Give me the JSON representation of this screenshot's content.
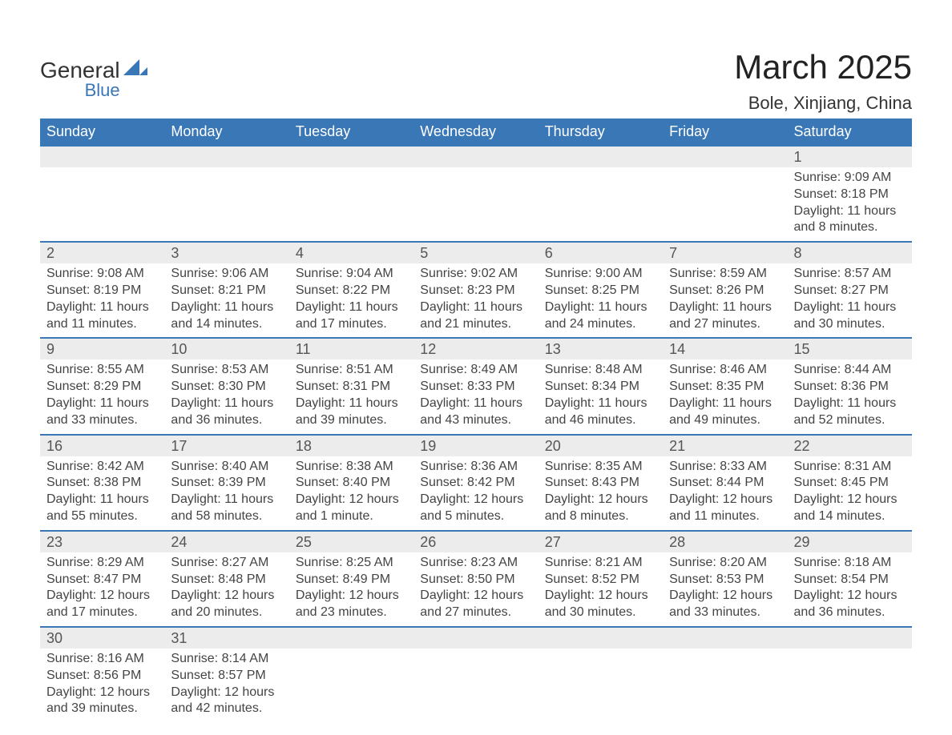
{
  "logo": {
    "word1": "General",
    "word2": "Blue",
    "shape_color": "#3a77b7",
    "text_color": "#333333"
  },
  "title": "March 2025",
  "location": "Bole, Xinjiang, China",
  "colors": {
    "header_bg": "#3a77b7",
    "header_text": "#ffffff",
    "row_separator": "#3a77b7",
    "daynum_bg": "#ececec",
    "body_text": "#444444",
    "page_bg": "#ffffff"
  },
  "typography": {
    "title_fontsize": 42,
    "location_fontsize": 22,
    "header_fontsize": 18,
    "daynum_fontsize": 18,
    "body_fontsize": 16
  },
  "day_headers": [
    "Sunday",
    "Monday",
    "Tuesday",
    "Wednesday",
    "Thursday",
    "Friday",
    "Saturday"
  ],
  "weeks": [
    [
      null,
      null,
      null,
      null,
      null,
      null,
      {
        "n": "1",
        "sr": "Sunrise: 9:09 AM",
        "ss": "Sunset: 8:18 PM",
        "d1": "Daylight: 11 hours",
        "d2": "and 8 minutes."
      }
    ],
    [
      {
        "n": "2",
        "sr": "Sunrise: 9:08 AM",
        "ss": "Sunset: 8:19 PM",
        "d1": "Daylight: 11 hours",
        "d2": "and 11 minutes."
      },
      {
        "n": "3",
        "sr": "Sunrise: 9:06 AM",
        "ss": "Sunset: 8:21 PM",
        "d1": "Daylight: 11 hours",
        "d2": "and 14 minutes."
      },
      {
        "n": "4",
        "sr": "Sunrise: 9:04 AM",
        "ss": "Sunset: 8:22 PM",
        "d1": "Daylight: 11 hours",
        "d2": "and 17 minutes."
      },
      {
        "n": "5",
        "sr": "Sunrise: 9:02 AM",
        "ss": "Sunset: 8:23 PM",
        "d1": "Daylight: 11 hours",
        "d2": "and 21 minutes."
      },
      {
        "n": "6",
        "sr": "Sunrise: 9:00 AM",
        "ss": "Sunset: 8:25 PM",
        "d1": "Daylight: 11 hours",
        "d2": "and 24 minutes."
      },
      {
        "n": "7",
        "sr": "Sunrise: 8:59 AM",
        "ss": "Sunset: 8:26 PM",
        "d1": "Daylight: 11 hours",
        "d2": "and 27 minutes."
      },
      {
        "n": "8",
        "sr": "Sunrise: 8:57 AM",
        "ss": "Sunset: 8:27 PM",
        "d1": "Daylight: 11 hours",
        "d2": "and 30 minutes."
      }
    ],
    [
      {
        "n": "9",
        "sr": "Sunrise: 8:55 AM",
        "ss": "Sunset: 8:29 PM",
        "d1": "Daylight: 11 hours",
        "d2": "and 33 minutes."
      },
      {
        "n": "10",
        "sr": "Sunrise: 8:53 AM",
        "ss": "Sunset: 8:30 PM",
        "d1": "Daylight: 11 hours",
        "d2": "and 36 minutes."
      },
      {
        "n": "11",
        "sr": "Sunrise: 8:51 AM",
        "ss": "Sunset: 8:31 PM",
        "d1": "Daylight: 11 hours",
        "d2": "and 39 minutes."
      },
      {
        "n": "12",
        "sr": "Sunrise: 8:49 AM",
        "ss": "Sunset: 8:33 PM",
        "d1": "Daylight: 11 hours",
        "d2": "and 43 minutes."
      },
      {
        "n": "13",
        "sr": "Sunrise: 8:48 AM",
        "ss": "Sunset: 8:34 PM",
        "d1": "Daylight: 11 hours",
        "d2": "and 46 minutes."
      },
      {
        "n": "14",
        "sr": "Sunrise: 8:46 AM",
        "ss": "Sunset: 8:35 PM",
        "d1": "Daylight: 11 hours",
        "d2": "and 49 minutes."
      },
      {
        "n": "15",
        "sr": "Sunrise: 8:44 AM",
        "ss": "Sunset: 8:36 PM",
        "d1": "Daylight: 11 hours",
        "d2": "and 52 minutes."
      }
    ],
    [
      {
        "n": "16",
        "sr": "Sunrise: 8:42 AM",
        "ss": "Sunset: 8:38 PM",
        "d1": "Daylight: 11 hours",
        "d2": "and 55 minutes."
      },
      {
        "n": "17",
        "sr": "Sunrise: 8:40 AM",
        "ss": "Sunset: 8:39 PM",
        "d1": "Daylight: 11 hours",
        "d2": "and 58 minutes."
      },
      {
        "n": "18",
        "sr": "Sunrise: 8:38 AM",
        "ss": "Sunset: 8:40 PM",
        "d1": "Daylight: 12 hours",
        "d2": "and 1 minute."
      },
      {
        "n": "19",
        "sr": "Sunrise: 8:36 AM",
        "ss": "Sunset: 8:42 PM",
        "d1": "Daylight: 12 hours",
        "d2": "and 5 minutes."
      },
      {
        "n": "20",
        "sr": "Sunrise: 8:35 AM",
        "ss": "Sunset: 8:43 PM",
        "d1": "Daylight: 12 hours",
        "d2": "and 8 minutes."
      },
      {
        "n": "21",
        "sr": "Sunrise: 8:33 AM",
        "ss": "Sunset: 8:44 PM",
        "d1": "Daylight: 12 hours",
        "d2": "and 11 minutes."
      },
      {
        "n": "22",
        "sr": "Sunrise: 8:31 AM",
        "ss": "Sunset: 8:45 PM",
        "d1": "Daylight: 12 hours",
        "d2": "and 14 minutes."
      }
    ],
    [
      {
        "n": "23",
        "sr": "Sunrise: 8:29 AM",
        "ss": "Sunset: 8:47 PM",
        "d1": "Daylight: 12 hours",
        "d2": "and 17 minutes."
      },
      {
        "n": "24",
        "sr": "Sunrise: 8:27 AM",
        "ss": "Sunset: 8:48 PM",
        "d1": "Daylight: 12 hours",
        "d2": "and 20 minutes."
      },
      {
        "n": "25",
        "sr": "Sunrise: 8:25 AM",
        "ss": "Sunset: 8:49 PM",
        "d1": "Daylight: 12 hours",
        "d2": "and 23 minutes."
      },
      {
        "n": "26",
        "sr": "Sunrise: 8:23 AM",
        "ss": "Sunset: 8:50 PM",
        "d1": "Daylight: 12 hours",
        "d2": "and 27 minutes."
      },
      {
        "n": "27",
        "sr": "Sunrise: 8:21 AM",
        "ss": "Sunset: 8:52 PM",
        "d1": "Daylight: 12 hours",
        "d2": "and 30 minutes."
      },
      {
        "n": "28",
        "sr": "Sunrise: 8:20 AM",
        "ss": "Sunset: 8:53 PM",
        "d1": "Daylight: 12 hours",
        "d2": "and 33 minutes."
      },
      {
        "n": "29",
        "sr": "Sunrise: 8:18 AM",
        "ss": "Sunset: 8:54 PM",
        "d1": "Daylight: 12 hours",
        "d2": "and 36 minutes."
      }
    ],
    [
      {
        "n": "30",
        "sr": "Sunrise: 8:16 AM",
        "ss": "Sunset: 8:56 PM",
        "d1": "Daylight: 12 hours",
        "d2": "and 39 minutes."
      },
      {
        "n": "31",
        "sr": "Sunrise: 8:14 AM",
        "ss": "Sunset: 8:57 PM",
        "d1": "Daylight: 12 hours",
        "d2": "and 42 minutes."
      },
      null,
      null,
      null,
      null,
      null
    ]
  ]
}
